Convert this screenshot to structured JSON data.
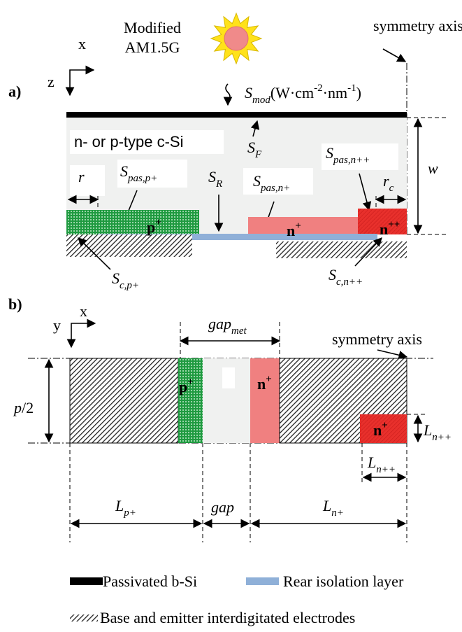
{
  "panel_a": {
    "label": "a)",
    "axis_x": "x",
    "axis_z": "z",
    "source": [
      "Modified",
      "AM1.5G"
    ],
    "symmetry_axis": "symmetry axis",
    "s_mod": {
      "symbol": "S",
      "sub": "mod",
      "unit": "(W·cm",
      "exp1": "-2",
      "unit2": "·nm",
      "exp2": "-1",
      "close": ")"
    },
    "substrate": "n- or p-type c-Si",
    "s_f": {
      "symbol": "S",
      "sub": "F"
    },
    "s_pas_p": {
      "symbol": "S",
      "sub": "pas,p+"
    },
    "s_r": {
      "symbol": "S",
      "sub": "R"
    },
    "s_pas_n": {
      "symbol": "S",
      "sub": "pas,n+"
    },
    "s_pas_npp": {
      "symbol": "S",
      "sub": "pas,n++"
    },
    "r": "r",
    "r_c": {
      "symbol": "r",
      "sub": "c"
    },
    "w": "w",
    "p_region": {
      "symbol": "p",
      "sup": "+"
    },
    "n_region": {
      "symbol": "n",
      "sup": "+"
    },
    "npp_region": {
      "symbol": "n",
      "sup": "++"
    },
    "s_c_p": {
      "symbol": "S",
      "sub": "c,p+"
    },
    "s_c_npp": {
      "symbol": "S",
      "sub": "c,n++"
    }
  },
  "panel_b": {
    "label": "b)",
    "axis_x": "x",
    "axis_y": "y",
    "gap_met": {
      "symbol": "gap",
      "sub": "met"
    },
    "symmetry_axis": "symmetry axis",
    "half_pitch": {
      "symbol": "p",
      "rest": "/2"
    },
    "p_region": {
      "symbol": "p",
      "sup": "+"
    },
    "n_region": {
      "symbol": "n",
      "sup": "+"
    },
    "npp_region": {
      "symbol": "n",
      "sup": "+"
    },
    "l_npp_height": {
      "symbol": "L",
      "sub": "n++"
    },
    "l_npp_width": {
      "symbol": "L",
      "sub": "n++"
    },
    "l_p": {
      "symbol": "L",
      "sub": "p+"
    },
    "gap": "gap",
    "l_n": {
      "symbol": "L",
      "sub": "n+"
    }
  },
  "legend": [
    "Passivated b-Si",
    "Rear isolation layer",
    "Base and emitter interdigitated electrodes"
  ]
}
